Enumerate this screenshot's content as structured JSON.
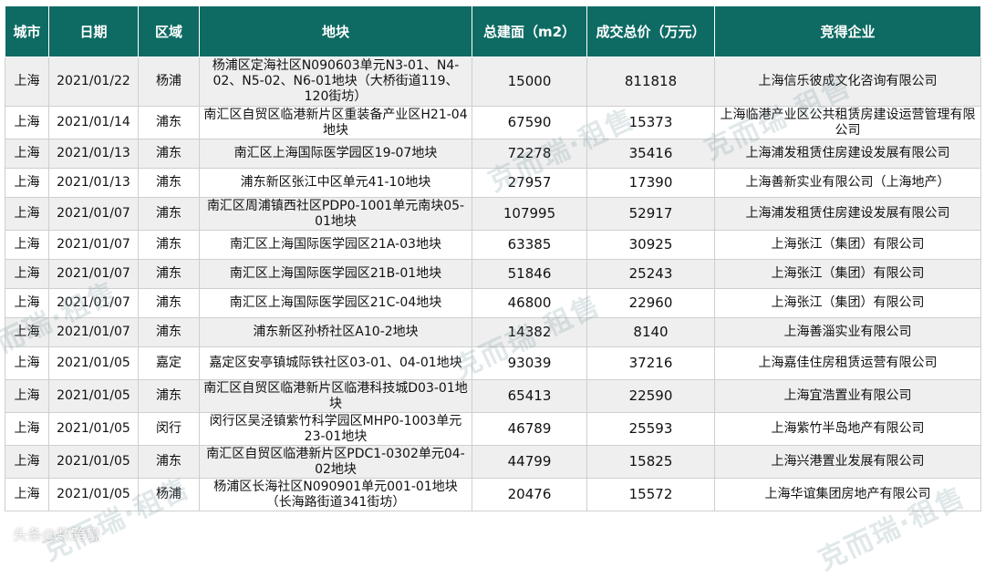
{
  "headers": [
    "城市",
    "日期",
    "区域",
    "地块",
    "总建面（m2）",
    "成交总价（万元）",
    "竞得企业"
  ],
  "rows": [
    [
      "上海",
      "2021/01/22",
      "杨浦",
      "杨浦区定海社区N090603单元N3-01、N4-02、N5-02、N6-01地块（大桥街道119、120街坊）",
      "15000",
      "811818",
      "上海信乐彼成文化咨询有限公司"
    ],
    [
      "上海",
      "2021/01/14",
      "浦东",
      "南汇区自贸区临港新片区重装备产业区H21-04地块",
      "67590",
      "15373",
      "上海临港产业区公共租赁房建设运营管理有限公司"
    ],
    [
      "上海",
      "2021/01/13",
      "浦东",
      "南汇区上海国际医学园区19-07地块",
      "72278",
      "35416",
      "上海浦发租赁住房建设发展有限公司"
    ],
    [
      "上海",
      "2021/01/13",
      "浦东",
      "浦东新区张江中区单元41-10地块",
      "27957",
      "17390",
      "上海善新实业有限公司（上海地产）"
    ],
    [
      "上海",
      "2021/01/07",
      "浦东",
      "南汇区周浦镇西社区PDP0-1001单元南块05-01地块",
      "107995",
      "52917",
      "上海浦发租赁住房建设发展有限公司"
    ],
    [
      "上海",
      "2021/01/07",
      "浦东",
      "南汇区上海国际医学园区21A-03地块",
      "63385",
      "30925",
      "上海张江（集团）有限公司"
    ],
    [
      "上海",
      "2021/01/07",
      "浦东",
      "南汇区上海国际医学园区21B-01地块",
      "51846",
      "25243",
      "上海张江（集团）有限公司"
    ],
    [
      "上海",
      "2021/01/07",
      "浦东",
      "南汇区上海国际医学园区21C-04地块",
      "46800",
      "22960",
      "上海张江（集团）有限公司"
    ],
    [
      "上海",
      "2021/01/07",
      "浦东",
      "浦东新区孙桥社区A10-2地块",
      "14382",
      "8140",
      "上海善淄实业有限公司"
    ],
    [
      "上海",
      "2021/01/05",
      "嘉定",
      "嘉定区安亭镇城际铁社区03-01、04-01地块",
      "93039",
      "37216",
      "上海嘉佳住房租赁运营有限公司"
    ],
    [
      "上海",
      "2021/01/05",
      "浦东",
      "南汇区自贸区临港新片区临港科技城D03-01地块",
      "65413",
      "22590",
      "上海宜浩置业有限公司"
    ],
    [
      "上海",
      "2021/01/05",
      "闵行",
      "闵行区吴泾镇紫竹科学园区MHP0-1003单元23-01地块",
      "46789",
      "25593",
      "上海紫竹半岛地产有限公司"
    ],
    [
      "上海",
      "2021/01/05",
      "浦东",
      "南汇区自贸区临港新片区PDC1-0302单元04-02地块",
      "44799",
      "15825",
      "上海兴港置业发展有限公司"
    ],
    [
      "上海",
      "2021/01/05",
      "杨浦",
      "杨浦区长海社区N090901单元001-01地块（长海路街道341街坊）",
      "20476",
      "15572",
      "上海华谊集团房地产有限公司"
    ]
  ],
  "watermark": "克而瑞·租售",
  "credit": "头条@数跨境"
}
